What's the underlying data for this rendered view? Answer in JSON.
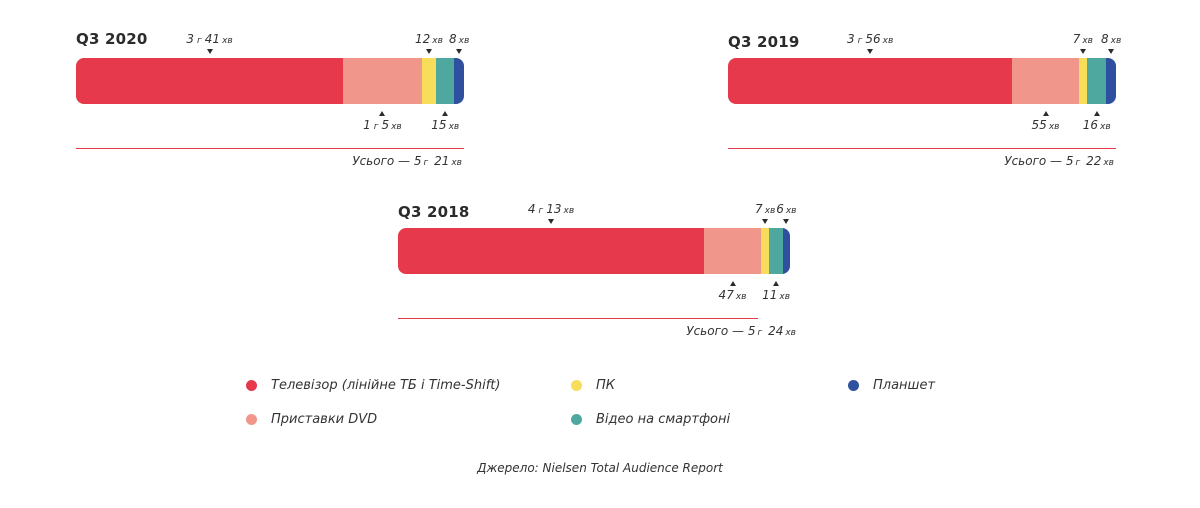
{
  "colors": {
    "tv": "#e63a4c",
    "dvd": "#f0968a",
    "pc": "#f7dd5a",
    "smartphone": "#4fa8a0",
    "tablet": "#2f4f9f"
  },
  "chart_data": [
    {
      "type": "bar",
      "title": "Q3 2020",
      "stacked": true,
      "orientation": "horizontal",
      "segments": [
        {
          "key": "tv",
          "minutes": 221,
          "label_num": "3",
          "label_h": "г",
          "label_num2": "41",
          "label_unit": "хв"
        },
        {
          "key": "dvd",
          "minutes": 65,
          "label_num": "1",
          "label_h": "г",
          "label_num2": "5",
          "label_unit": "хв"
        },
        {
          "key": "pc",
          "minutes": 12,
          "label_num": "12",
          "label_h": "",
          "label_num2": "",
          "label_unit": "хв"
        },
        {
          "key": "smartphone",
          "minutes": 15,
          "label_num": "15",
          "label_h": "",
          "label_num2": "",
          "label_unit": "хв"
        },
        {
          "key": "tablet",
          "minutes": 8,
          "label_num": "8",
          "label_h": "",
          "label_num2": "",
          "label_unit": "хв"
        }
      ],
      "total": {
        "prefix": "Усього —",
        "h": "5",
        "h_unit": "г",
        "m": "21",
        "m_unit": "хв"
      }
    },
    {
      "type": "bar",
      "title": "Q3 2019",
      "stacked": true,
      "orientation": "horizontal",
      "segments": [
        {
          "key": "tv",
          "minutes": 236,
          "label_num": "3",
          "label_h": "г",
          "label_num2": "56",
          "label_unit": "хв"
        },
        {
          "key": "dvd",
          "minutes": 55,
          "label_num": "55",
          "label_h": "",
          "label_num2": "",
          "label_unit": "хв"
        },
        {
          "key": "pc",
          "minutes": 7,
          "label_num": "7",
          "label_h": "",
          "label_num2": "",
          "label_unit": "хв"
        },
        {
          "key": "smartphone",
          "minutes": 16,
          "label_num": "16",
          "label_h": "",
          "label_num2": "",
          "label_unit": "хв"
        },
        {
          "key": "tablet",
          "minutes": 8,
          "label_num": "8",
          "label_h": "",
          "label_num2": "",
          "label_unit": "хв"
        }
      ],
      "total": {
        "prefix": "Усього —",
        "h": "5",
        "h_unit": "г",
        "m": "22",
        "m_unit": "хв"
      }
    },
    {
      "type": "bar",
      "title": "Q3 2018",
      "stacked": true,
      "orientation": "horizontal",
      "segments": [
        {
          "key": "tv",
          "minutes": 253,
          "label_num": "4",
          "label_h": "г",
          "label_num2": "13",
          "label_unit": "хв"
        },
        {
          "key": "dvd",
          "minutes": 47,
          "label_num": "47",
          "label_h": "",
          "label_num2": "",
          "label_unit": "хв"
        },
        {
          "key": "pc",
          "minutes": 7,
          "label_num": "7",
          "label_h": "",
          "label_num2": "",
          "label_unit": "хв"
        },
        {
          "key": "smartphone",
          "minutes": 11,
          "label_num": "11",
          "label_h": "",
          "label_num2": "",
          "label_unit": "хв"
        },
        {
          "key": "tablet",
          "minutes": 6,
          "label_num": "6",
          "label_h": "",
          "label_num2": "",
          "label_unit": "хв"
        }
      ],
      "total": {
        "prefix": "Усього —",
        "h": "5",
        "h_unit": "г",
        "m": "24",
        "m_unit": "хв"
      }
    }
  ],
  "legend": [
    {
      "key": "tv",
      "label": "Телевізор (лінійне ТБ і Time-Shift)"
    },
    {
      "key": "dvd",
      "label": "Приставки  DVD"
    },
    {
      "key": "pc",
      "label": "ПК"
    },
    {
      "key": "smartphone",
      "label": "Відео на смартфоні"
    },
    {
      "key": "tablet",
      "label": "Планшет"
    }
  ],
  "source": "Джерело: Nielsen Total Audience Report"
}
